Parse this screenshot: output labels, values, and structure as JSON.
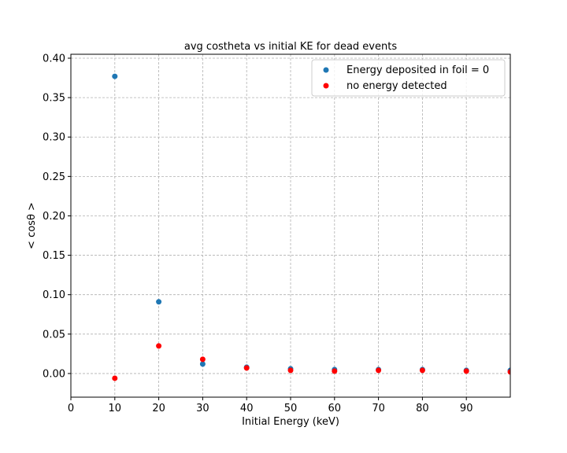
{
  "chart_data": {
    "type": "scatter",
    "title": "avg costheta vs initial KE for dead events",
    "xlabel": "Initial Energy (keV)",
    "ylabel": "< cosθ >",
    "xlim": [
      0,
      100
    ],
    "ylim": [
      -0.03,
      0.405
    ],
    "xticks": [
      0,
      10,
      20,
      30,
      40,
      50,
      60,
      70,
      80,
      90
    ],
    "yticks": [
      0.0,
      0.05,
      0.1,
      0.15,
      0.2,
      0.25,
      0.3,
      0.35,
      0.4
    ],
    "ytick_labels": [
      "0.00",
      "0.05",
      "0.10",
      "0.15",
      "0.20",
      "0.25",
      "0.30",
      "0.35",
      "0.40"
    ],
    "grid": true,
    "legend_position": "top-right",
    "series": [
      {
        "name": "Energy deposited in foil = 0",
        "color": "#1f77b4",
        "x": [
          10,
          20,
          30,
          40,
          50,
          60,
          70,
          80,
          90,
          100
        ],
        "y": [
          0.377,
          0.091,
          0.012,
          0.008,
          0.006,
          0.005,
          0.005,
          0.005,
          0.004,
          0.004
        ]
      },
      {
        "name": "no energy detected",
        "color": "#ff0000",
        "x": [
          10,
          20,
          30,
          40,
          50,
          60,
          70,
          80,
          90,
          100
        ],
        "y": [
          -0.006,
          0.035,
          0.018,
          0.007,
          0.004,
          0.003,
          0.004,
          0.004,
          0.003,
          0.002
        ]
      }
    ]
  }
}
